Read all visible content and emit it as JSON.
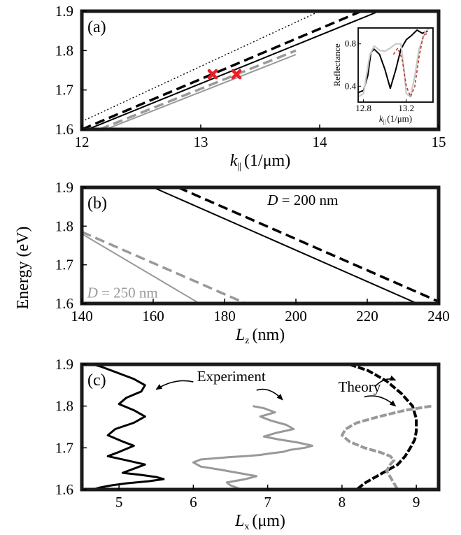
{
  "ylabel_shared": "Energy (eV)",
  "colors": {
    "black": "#000000",
    "gray": "#999999",
    "red": "#e8202a",
    "light_gray": "#c8c8c8",
    "dark_red": "#c0392b"
  },
  "chart_data": [
    {
      "panel_label": "(a)",
      "type": "line",
      "xlabel": "k",
      "xlabel_sub": "||",
      "xlabel_unit": "(1/μm)",
      "xlim": [
        12,
        15
      ],
      "ylim": [
        1.6,
        1.9
      ],
      "xticks": [
        "12",
        "13",
        "14",
        "15"
      ],
      "yticks": [
        "1.6",
        "1.7",
        "1.8",
        "1.9"
      ],
      "series": [
        {
          "style": "dotted-black",
          "x": [
            12.0,
            14.0
          ],
          "y": [
            1.62,
            1.9
          ]
        },
        {
          "style": "dashed-black",
          "x": [
            12.0,
            14.35
          ],
          "y": [
            1.6,
            1.9
          ]
        },
        {
          "style": "solid-black",
          "x": [
            12.05,
            14.5
          ],
          "y": [
            1.6,
            1.9
          ]
        },
        {
          "style": "dashed-gray",
          "x": [
            12.15,
            13.8
          ],
          "y": [
            1.6,
            1.8
          ]
        },
        {
          "style": "solid-gray",
          "x": [
            12.2,
            13.8
          ],
          "y": [
            1.6,
            1.79
          ]
        }
      ],
      "markers": [
        {
          "x": 13.1,
          "y": 1.74
        },
        {
          "x": 13.3,
          "y": 1.74
        }
      ],
      "inset": {
        "ylabel": "Reflectance",
        "xlabel": "k",
        "xlabel_sub": "||",
        "xlabel_unit": "(1/μm)",
        "xlim": [
          12.75,
          13.45
        ],
        "ylim": [
          0.25,
          0.95
        ],
        "xticks": [
          "12.8",
          "13.2"
        ],
        "yticks": [
          "0.4",
          "0.8"
        ],
        "series": [
          {
            "style": "black",
            "x": [
              12.75,
              12.8,
              12.84,
              12.87,
              12.9,
              12.95,
              13.0,
              13.05,
              13.1,
              13.15,
              13.2,
              13.25,
              13.3,
              13.35,
              13.4
            ],
            "y": [
              0.34,
              0.36,
              0.5,
              0.72,
              0.75,
              0.7,
              0.56,
              0.38,
              0.55,
              0.75,
              0.84,
              0.88,
              0.93,
              0.9,
              0.92
            ]
          },
          {
            "style": "light-gray",
            "x": [
              12.75,
              12.8,
              12.86,
              12.9,
              12.95,
              13.0,
              13.05,
              13.1,
              13.15,
              13.18,
              13.2,
              13.24,
              13.28,
              13.32,
              13.38,
              13.42
            ],
            "y": [
              0.3,
              0.33,
              0.7,
              0.78,
              0.74,
              0.73,
              0.76,
              0.8,
              0.8,
              0.55,
              0.33,
              0.3,
              0.5,
              0.75,
              0.92,
              0.95
            ]
          },
          {
            "style": "dashed-red",
            "x": [
              13.08,
              13.12,
              13.16,
              13.2,
              13.24,
              13.28,
              13.32,
              13.36,
              13.4
            ],
            "y": [
              0.7,
              0.76,
              0.66,
              0.4,
              0.3,
              0.4,
              0.68,
              0.88,
              0.9
            ]
          }
        ]
      }
    },
    {
      "panel_label": "(b)",
      "type": "line",
      "xlabel": "L",
      "xlabel_sub": "z",
      "xlabel_unit": "(nm)",
      "xlim": [
        140,
        240
      ],
      "ylim": [
        1.6,
        1.9
      ],
      "xticks": [
        "140",
        "160",
        "180",
        "200",
        "220",
        "240"
      ],
      "yticks": [
        "1.6",
        "1.7",
        "1.8",
        "1.9"
      ],
      "annotations": [
        {
          "text_var": "D",
          "text_rest": " = 200 nm",
          "color": "black",
          "x": 192,
          "y": 1.855
        },
        {
          "text_var": "D",
          "text_rest": " = 250 nm",
          "color": "gray",
          "x": 141.5,
          "y": 1.615
        }
      ],
      "series": [
        {
          "style": "solid-black",
          "x": [
            160,
            234
          ],
          "y": [
            1.9,
            1.6
          ]
        },
        {
          "style": "dashed-black",
          "x": [
            167,
            240
          ],
          "y": [
            1.9,
            1.605
          ]
        },
        {
          "style": "dashed-gray",
          "x": [
            140,
            186
          ],
          "y": [
            1.785,
            1.6
          ]
        },
        {
          "style": "solid-gray",
          "x": [
            140,
            173
          ],
          "y": [
            1.78,
            1.6
          ]
        }
      ]
    },
    {
      "panel_label": "(c)",
      "type": "line",
      "xlabel": "L",
      "xlabel_sub": "x",
      "xlabel_unit": "(μm)",
      "xlim": [
        4.5,
        9.3
      ],
      "ylim": [
        1.6,
        1.9
      ],
      "xticks": [
        "5",
        "6",
        "7",
        "8",
        "9"
      ],
      "yticks": [
        "1.6",
        "1.7",
        "1.8",
        "1.9"
      ],
      "annotations": [
        {
          "text": "Experiment",
          "x": 6.05,
          "y": 1.86
        },
        {
          "text": "Theory",
          "x": 7.95,
          "y": 1.835
        }
      ],
      "series": [
        {
          "style": "black-exp",
          "x": [
            4.65,
            4.75,
            4.9,
            5.05,
            5.2,
            5.35,
            5.3,
            5.1,
            5.0,
            5.2,
            5.35,
            5.2,
            4.95,
            4.85,
            5.05,
            5.2,
            5.0,
            4.85,
            5.1,
            5.35,
            5.2,
            5.05,
            5.3,
            5.5,
            5.6,
            5.4,
            5.1,
            4.9,
            4.75,
            4.65
          ],
          "y": [
            1.9,
            1.895,
            1.885,
            1.875,
            1.865,
            1.85,
            1.835,
            1.82,
            1.805,
            1.79,
            1.775,
            1.76,
            1.745,
            1.73,
            1.715,
            1.705,
            1.69,
            1.68,
            1.67,
            1.66,
            1.65,
            1.64,
            1.635,
            1.63,
            1.625,
            1.62,
            1.615,
            1.61,
            1.605,
            1.6
          ]
        },
        {
          "style": "gray-exp",
          "x": [
            6.8,
            6.95,
            7.1,
            6.9,
            7.05,
            7.25,
            7.35,
            7.1,
            6.95,
            7.15,
            7.4,
            7.6,
            7.5,
            7.3,
            7.2,
            7.05,
            6.9,
            6.7,
            6.5,
            6.3,
            6.1,
            6.0,
            6.1,
            6.35,
            6.6,
            6.85,
            6.7,
            6.45,
            6.5,
            6.65
          ],
          "y": [
            1.8,
            1.795,
            1.785,
            1.775,
            1.765,
            1.755,
            1.745,
            1.735,
            1.727,
            1.72,
            1.713,
            1.705,
            1.7,
            1.695,
            1.69,
            1.687,
            1.683,
            1.68,
            1.678,
            1.675,
            1.672,
            1.665,
            1.655,
            1.648,
            1.64,
            1.632,
            1.625,
            1.617,
            1.61,
            1.6
          ]
        },
        {
          "style": "black-theory",
          "x": [
            8.1,
            8.35,
            8.6,
            8.8,
            8.95,
            9.0,
            9.0,
            8.98,
            8.92,
            8.85,
            8.75,
            8.6,
            8.45,
            8.3,
            8.2
          ],
          "y": [
            1.9,
            1.885,
            1.86,
            1.83,
            1.8,
            1.77,
            1.74,
            1.72,
            1.7,
            1.68,
            1.66,
            1.645,
            1.63,
            1.615,
            1.6
          ]
        },
        {
          "style": "gray-theory",
          "x": [
            9.2,
            8.85,
            8.5,
            8.2,
            8.05,
            8.0,
            8.1,
            8.3,
            8.5,
            8.65,
            8.7,
            8.65,
            8.6,
            8.65,
            8.7,
            8.75
          ],
          "y": [
            1.8,
            1.79,
            1.775,
            1.76,
            1.745,
            1.73,
            1.715,
            1.7,
            1.69,
            1.68,
            1.67,
            1.66,
            1.645,
            1.63,
            1.615,
            1.6
          ]
        }
      ]
    }
  ]
}
